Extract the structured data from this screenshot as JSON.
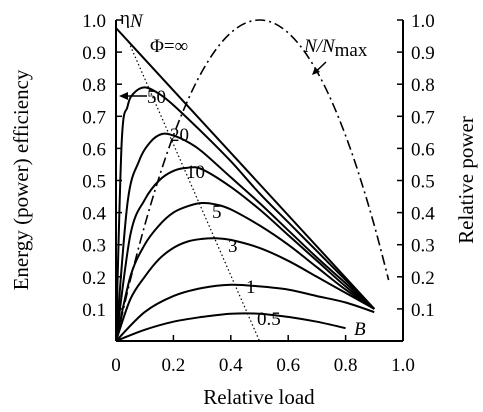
{
  "chart_data": {
    "type": "line",
    "title": "",
    "xlabel": "Relative load",
    "ylabel_left": "Energy (power) efficiency",
    "ylabel_right": "Relative power",
    "xlim": [
      0,
      1.0
    ],
    "ylim": [
      0,
      1.0
    ],
    "x_ticks": [
      "0",
      "0.2",
      "0.4",
      "0.6",
      "0.8",
      "1.0"
    ],
    "y_ticks": [
      "0.1",
      "0.2",
      "0.3",
      "0.4",
      "0.5",
      "0.6",
      "0.7",
      "0.8",
      "0.9",
      "1.0"
    ],
    "series": [
      {
        "name": "Φ=∞",
        "style": "solid",
        "x": [
          0,
          0.9
        ],
        "y": [
          0.975,
          0.1
        ]
      },
      {
        "name": "50",
        "style": "solid",
        "x": [
          0,
          0.02,
          0.04,
          0.06,
          0.1,
          0.15,
          0.2,
          0.3,
          0.4,
          0.5,
          0.6,
          0.7,
          0.8,
          0.9
        ],
        "y": [
          0,
          0.62,
          0.73,
          0.77,
          0.79,
          0.77,
          0.735,
          0.65,
          0.56,
          0.46,
          0.37,
          0.28,
          0.19,
          0.1
        ]
      },
      {
        "name": "20",
        "style": "solid",
        "x": [
          0,
          0.04,
          0.08,
          0.12,
          0.16,
          0.2,
          0.25,
          0.3,
          0.4,
          0.5,
          0.6,
          0.7,
          0.8,
          0.9
        ],
        "y": [
          0,
          0.43,
          0.56,
          0.62,
          0.645,
          0.64,
          0.62,
          0.59,
          0.51,
          0.43,
          0.345,
          0.26,
          0.18,
          0.1
        ]
      },
      {
        "name": "10",
        "style": "solid",
        "x": [
          0,
          0.05,
          0.1,
          0.15,
          0.2,
          0.25,
          0.3,
          0.4,
          0.5,
          0.6,
          0.7,
          0.8,
          0.9
        ],
        "y": [
          0,
          0.33,
          0.44,
          0.5,
          0.53,
          0.54,
          0.535,
          0.48,
          0.41,
          0.33,
          0.25,
          0.17,
          0.1
        ]
      },
      {
        "name": "5",
        "style": "solid",
        "x": [
          0,
          0.05,
          0.1,
          0.15,
          0.2,
          0.25,
          0.3,
          0.35,
          0.4,
          0.5,
          0.6,
          0.7,
          0.8,
          0.9
        ],
        "y": [
          0,
          0.2,
          0.3,
          0.36,
          0.4,
          0.42,
          0.43,
          0.425,
          0.41,
          0.36,
          0.3,
          0.23,
          0.16,
          0.1
        ]
      },
      {
        "name": "3",
        "style": "solid",
        "x": [
          0,
          0.05,
          0.1,
          0.15,
          0.2,
          0.25,
          0.3,
          0.35,
          0.4,
          0.5,
          0.6,
          0.7,
          0.8,
          0.9
        ],
        "y": [
          0,
          0.13,
          0.2,
          0.255,
          0.29,
          0.31,
          0.318,
          0.32,
          0.315,
          0.29,
          0.25,
          0.2,
          0.15,
          0.1
        ]
      },
      {
        "name": "1",
        "style": "solid",
        "x": [
          0,
          0.1,
          0.2,
          0.3,
          0.4,
          0.5,
          0.6,
          0.7,
          0.8,
          0.9
        ],
        "y": [
          0,
          0.09,
          0.14,
          0.165,
          0.175,
          0.17,
          0.16,
          0.14,
          0.12,
          0.09
        ]
      },
      {
        "name": "0.5",
        "style": "solid",
        "x": [
          0,
          0.1,
          0.2,
          0.3,
          0.4,
          0.5,
          0.6,
          0.7,
          0.8
        ],
        "y": [
          0,
          0.035,
          0.06,
          0.075,
          0.085,
          0.085,
          0.075,
          0.06,
          0.04
        ]
      },
      {
        "name": "dotted line",
        "style": "dotted",
        "x": [
          0.05,
          0.5
        ],
        "y": [
          0.92,
          0
        ]
      },
      {
        "name": "N/Nmax",
        "style": "dashdot",
        "x": [
          0,
          0.05,
          0.1,
          0.15,
          0.2,
          0.25,
          0.3,
          0.35,
          0.4,
          0.45,
          0.5,
          0.55,
          0.6,
          0.65,
          0.7,
          0.75,
          0.8,
          0.85,
          0.9,
          0.95
        ],
        "y": [
          0,
          0.19,
          0.36,
          0.51,
          0.64,
          0.75,
          0.84,
          0.91,
          0.96,
          0.99,
          1.0,
          0.99,
          0.96,
          0.91,
          0.84,
          0.75,
          0.64,
          0.51,
          0.36,
          0.19
        ]
      }
    ],
    "annotations": {
      "eta": "η",
      "eta_sub": "N",
      "phi": "Φ=∞",
      "nmax_main": "N/N",
      "nmax_sub": "max",
      "b": "B",
      "curve_labels": [
        "50",
        "20",
        "10",
        "5",
        "3",
        "1",
        "0.5"
      ]
    },
    "grid": false,
    "legend": "none"
  }
}
